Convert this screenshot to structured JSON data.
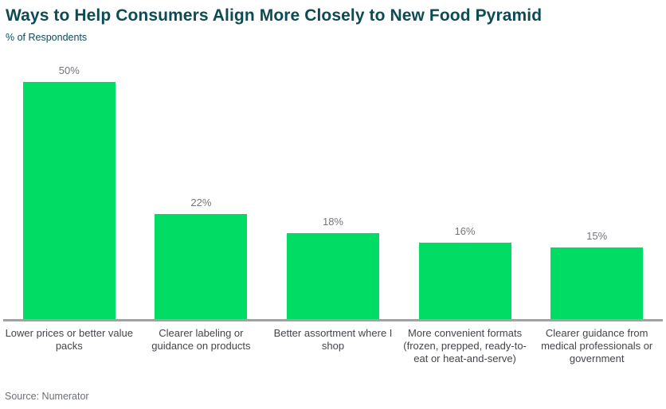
{
  "header": {
    "title": "Ways to Help Consumers Align More Closely to New Food Pyramid",
    "subtitle": "% of Respondents"
  },
  "chart_data": {
    "type": "bar",
    "title": "Ways to Help Consumers Align More Closely to New Food Pyramid",
    "subtitle": "% of Respondents",
    "categories": [
      "Lower prices or better value packs",
      "Clearer labeling or guidance on products",
      "Better assortment where I shop",
      "More convenient formats (frozen, prepped, ready-to-eat or heat-and-serve)",
      "Clearer guidance from medical professionals or government"
    ],
    "values": [
      50,
      22,
      18,
      16,
      15
    ],
    "value_labels": [
      "50%",
      "22%",
      "18%",
      "16%",
      "15%"
    ],
    "xlabel": "",
    "ylabel": "% of Respondents",
    "ylim": [
      0,
      53.5
    ],
    "grid": false,
    "legend": false,
    "bar_color": "#00dc64"
  },
  "footer": {
    "source": "Source: Numerator"
  },
  "colors": {
    "title_text": "#0d4b54",
    "bar": "#00dc64",
    "value_label": "#75757c",
    "category_label": "#45464b",
    "axis_line": "#a2a2a2",
    "source_text": "#6b6f77",
    "page_bg": "#ffffff"
  }
}
